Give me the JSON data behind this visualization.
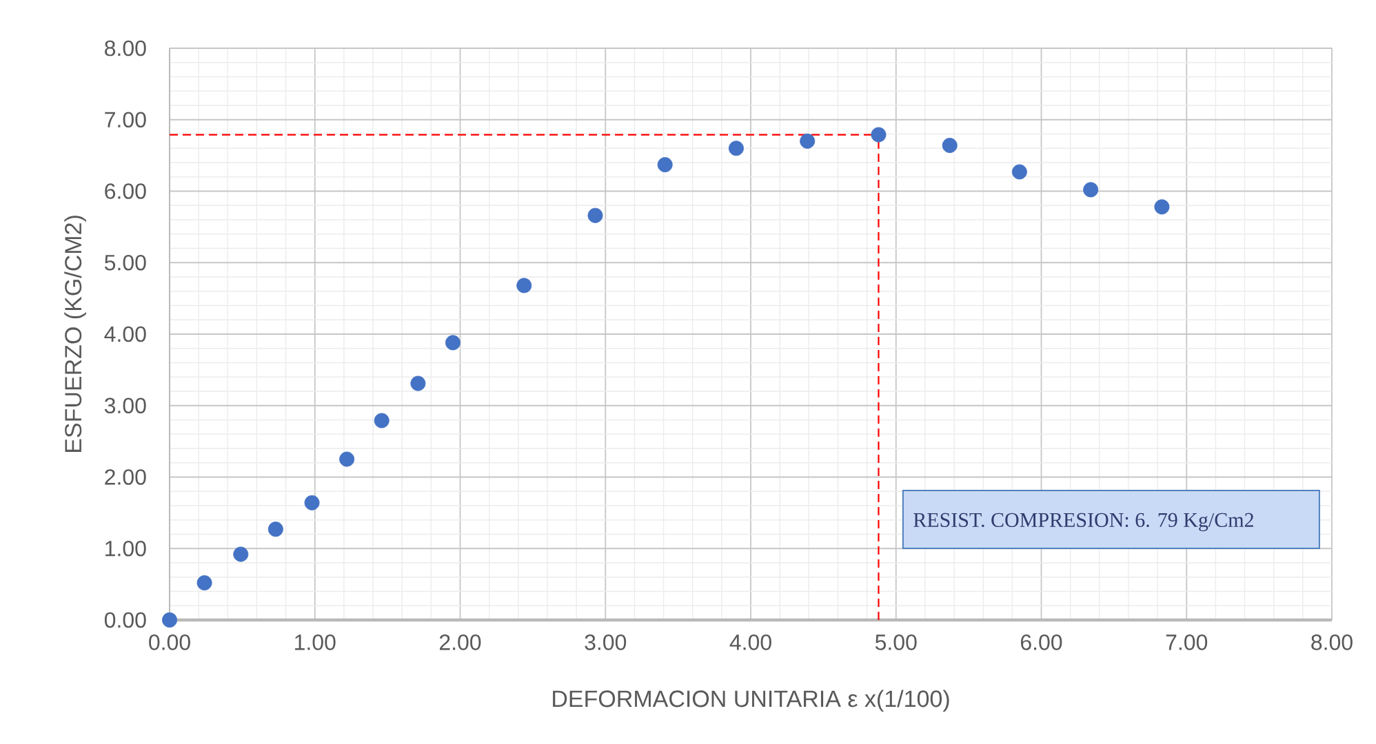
{
  "chart_data": {
    "type": "scatter",
    "xlabel": "DEFORMACION UNITARIA ε x(1/100)",
    "ylabel": "ESFUERZO (KG/CM2)",
    "x": [
      0,
      0.24,
      0.49,
      0.73,
      0.98,
      1.22,
      1.46,
      1.71,
      1.95,
      2.44,
      2.93,
      3.41,
      3.9,
      4.39,
      4.88,
      5.37,
      5.85,
      6.34,
      6.83
    ],
    "series": [
      {
        "color": "#4472c4",
        "values": [
          0,
          0.52,
          0.92,
          1.27,
          1.64,
          2.25,
          2.79,
          3.31,
          3.88,
          4.68,
          5.66,
          6.37,
          6.6,
          6.7,
          6.79,
          6.64,
          6.27,
          6.02,
          5.78
        ]
      }
    ],
    "ref_lines": [
      {
        "axis": "y",
        "value": 6.79,
        "color": "#ff0000",
        "line_style": "dashed"
      },
      {
        "axis": "x",
        "value": 4.88,
        "color": "#ff0000",
        "line_style": "dashed"
      }
    ],
    "xlim": [
      0,
      8
    ],
    "ylim": [
      0,
      8
    ],
    "xticks": [
      {
        "value": 0,
        "label": "0.00"
      },
      {
        "value": 1,
        "label": "1.00"
      },
      {
        "value": 2,
        "label": "2.00"
      },
      {
        "value": 3,
        "label": "3.00"
      },
      {
        "value": 4,
        "label": "4.00"
      },
      {
        "value": 5,
        "label": "5.00"
      },
      {
        "value": 6,
        "label": "6.00"
      },
      {
        "value": 7,
        "label": "7.00"
      },
      {
        "value": 8,
        "label": "8.00"
      }
    ],
    "yticks": [
      {
        "value": 0,
        "label": "0.00"
      },
      {
        "value": 1,
        "label": "1.00"
      },
      {
        "value": 2,
        "label": "2.00"
      },
      {
        "value": 3,
        "label": "3.00"
      },
      {
        "value": 4,
        "label": "4.00"
      },
      {
        "value": 5,
        "label": "5.00"
      },
      {
        "value": 6,
        "label": "6.00"
      },
      {
        "value": 7,
        "label": "7.00"
      },
      {
        "value": 8,
        "label": "8.00"
      }
    ],
    "grid": true,
    "marker": "circle",
    "annotations": [
      "RESIST. COMPRESION: 6. 79 Kg/Cm2"
    ]
  }
}
